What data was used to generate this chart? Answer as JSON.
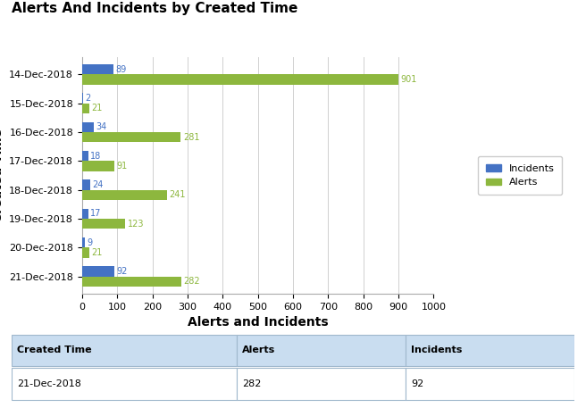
{
  "title": "Alerts And Incidents by Created Time",
  "xlabel": "Alerts and Incidents",
  "ylabel": "Created Time",
  "categories": [
    "14-Dec-2018",
    "15-Dec-2018",
    "16-Dec-2018",
    "17-Dec-2018",
    "18-Dec-2018",
    "19-Dec-2018",
    "20-Dec-2018",
    "21-Dec-2018"
  ],
  "incidents": [
    89,
    2,
    34,
    18,
    24,
    17,
    9,
    92
  ],
  "alerts": [
    901,
    21,
    281,
    91,
    241,
    123,
    21,
    282
  ],
  "incidents_color": "#4472C4",
  "alerts_color": "#8DB73E",
  "xlim": [
    0,
    1000
  ],
  "xticks": [
    0,
    100,
    200,
    300,
    400,
    500,
    600,
    700,
    800,
    900,
    1000
  ],
  "bar_height": 0.35,
  "legend_labels": [
    "Incidents",
    "Alerts"
  ],
  "background_color": "#ffffff",
  "grid_color": "#d0d0d0",
  "table_headers": [
    "Created Time",
    "Alerts",
    "Incidents"
  ],
  "table_row": [
    "21-Dec-2018",
    "282",
    "92"
  ],
  "table_header_color": "#c9ddf0",
  "table_border_color": "#a0b8cc"
}
